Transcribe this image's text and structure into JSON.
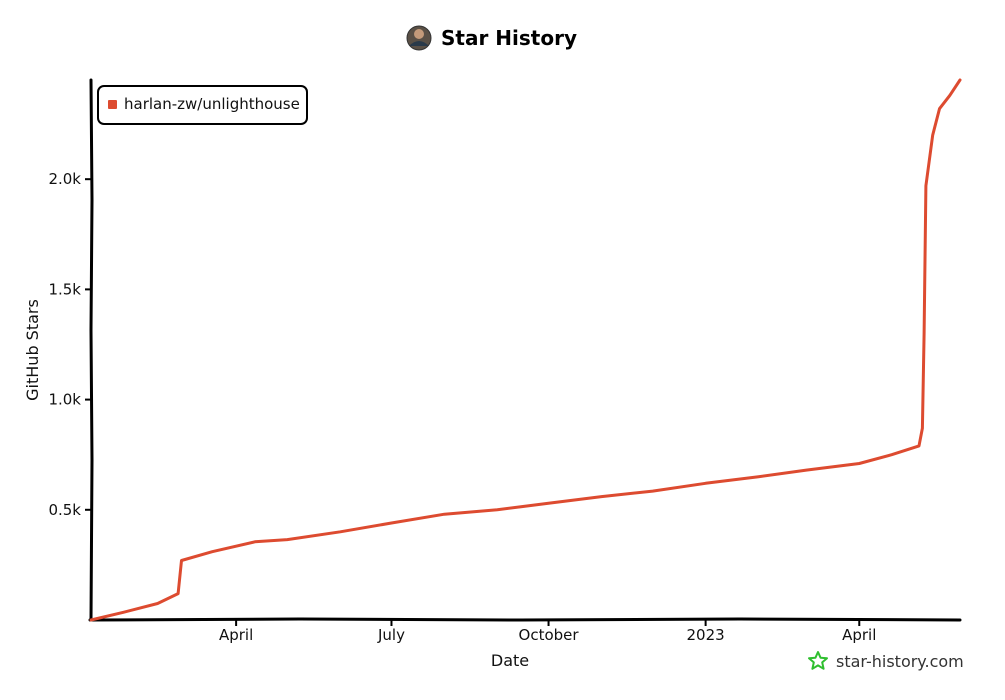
{
  "chart_data": {
    "type": "line",
    "title": "Star History",
    "xlabel": "Date",
    "ylabel": "GitHub Stars",
    "x_axis_type": "date",
    "x_range": [
      "2022-01-06",
      "2023-05-30"
    ],
    "ylim": [
      0,
      2450
    ],
    "x_ticks": [
      {
        "date": "2022-04-01",
        "label": "April"
      },
      {
        "date": "2022-07-01",
        "label": "July"
      },
      {
        "date": "2022-10-01",
        "label": "October"
      },
      {
        "date": "2023-01-01",
        "label": "2023"
      },
      {
        "date": "2023-04-01",
        "label": "April"
      }
    ],
    "y_ticks": [
      {
        "value": 500,
        "label": "0.5k"
      },
      {
        "value": 1000,
        "label": "1.0k"
      },
      {
        "value": 1500,
        "label": "1.5k"
      },
      {
        "value": 2000,
        "label": "2.0k"
      }
    ],
    "grid": false,
    "legend_position": "top-left",
    "series": [
      {
        "name": "harlan-zw/unlighthouse",
        "color": "#dd4b30",
        "points": [
          {
            "x": "2022-01-06",
            "y": 0
          },
          {
            "x": "2022-01-25",
            "y": 35
          },
          {
            "x": "2022-02-14",
            "y": 75
          },
          {
            "x": "2022-02-26",
            "y": 120
          },
          {
            "x": "2022-02-28",
            "y": 270
          },
          {
            "x": "2022-03-18",
            "y": 310
          },
          {
            "x": "2022-04-12",
            "y": 355
          },
          {
            "x": "2022-05-01",
            "y": 365
          },
          {
            "x": "2022-06-01",
            "y": 400
          },
          {
            "x": "2022-07-01",
            "y": 440
          },
          {
            "x": "2022-08-01",
            "y": 480
          },
          {
            "x": "2022-09-01",
            "y": 500
          },
          {
            "x": "2022-10-01",
            "y": 530
          },
          {
            "x": "2022-11-01",
            "y": 560
          },
          {
            "x": "2022-12-01",
            "y": 585
          },
          {
            "x": "2023-01-01",
            "y": 620
          },
          {
            "x": "2023-02-01",
            "y": 650
          },
          {
            "x": "2023-03-01",
            "y": 680
          },
          {
            "x": "2023-04-01",
            "y": 710
          },
          {
            "x": "2023-04-20",
            "y": 750
          },
          {
            "x": "2023-05-06",
            "y": 790
          },
          {
            "x": "2023-05-08",
            "y": 870
          },
          {
            "x": "2023-05-09",
            "y": 1300
          },
          {
            "x": "2023-05-10",
            "y": 1970
          },
          {
            "x": "2023-05-14",
            "y": 2200
          },
          {
            "x": "2023-05-18",
            "y": 2320
          },
          {
            "x": "2023-05-24",
            "y": 2380
          },
          {
            "x": "2023-05-30",
            "y": 2450
          }
        ]
      }
    ]
  },
  "watermark": {
    "text": "star-history.com",
    "icon": "star-outline-icon",
    "icon_color": "#2fbf2f"
  },
  "title_avatar": {
    "icon": "avatar-icon"
  }
}
